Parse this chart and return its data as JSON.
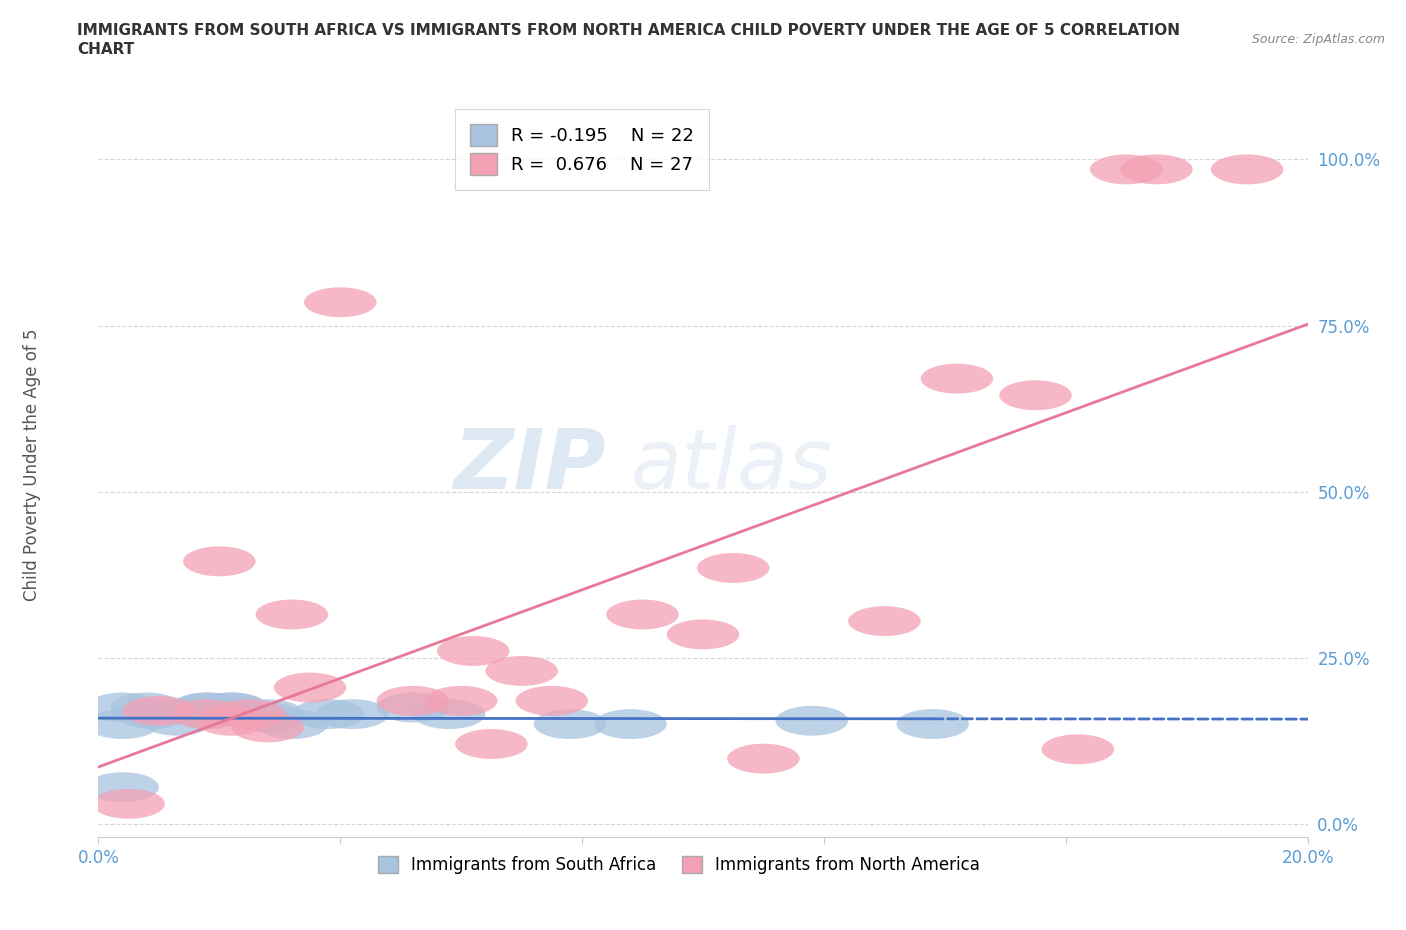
{
  "title_line1": "IMMIGRANTS FROM SOUTH AFRICA VS IMMIGRANTS FROM NORTH AMERICA CHILD POVERTY UNDER THE AGE OF 5 CORRELATION",
  "title_line2": "CHART",
  "source_text": "Source: ZipAtlas.com",
  "ylabel": "Child Poverty Under the Age of 5",
  "xlim": [
    0.0,
    0.2
  ],
  "ylim": [
    -0.02,
    1.1
  ],
  "yticks": [
    0.0,
    0.25,
    0.5,
    0.75,
    1.0
  ],
  "ytick_labels": [
    "0.0%",
    "25.0%",
    "50.0%",
    "75.0%",
    "100.0%"
  ],
  "xtick_positions": [
    0.0,
    0.04,
    0.08,
    0.12,
    0.16,
    0.2
  ],
  "xtick_labels": [
    "0.0%",
    "",
    "",
    "",
    "",
    "20.0%"
  ],
  "r_south_africa": -0.195,
  "n_south_africa": 22,
  "r_north_america": 0.676,
  "n_north_america": 27,
  "color_south_africa": "#a8c4e0",
  "color_north_america": "#f4a0b4",
  "line_color_south_africa": "#4472c4",
  "line_color_north_america": "#e8789a",
  "watermark_zip": "ZIP",
  "watermark_atlas": "atlas",
  "south_africa_x": [
    0.008,
    0.018,
    0.004,
    0.022,
    0.013,
    0.028,
    0.018,
    0.022,
    0.032,
    0.038,
    0.009,
    0.018,
    0.028,
    0.042,
    0.058,
    0.078,
    0.118,
    0.004,
    0.052,
    0.088,
    0.138,
    0.004
  ],
  "south_africa_y": [
    0.175,
    0.175,
    0.175,
    0.175,
    0.155,
    0.16,
    0.175,
    0.175,
    0.15,
    0.165,
    0.165,
    0.165,
    0.165,
    0.165,
    0.165,
    0.15,
    0.155,
    0.055,
    0.175,
    0.15,
    0.15,
    0.15
  ],
  "north_america_x": [
    0.005,
    0.01,
    0.018,
    0.022,
    0.02,
    0.025,
    0.028,
    0.032,
    0.035,
    0.04,
    0.052,
    0.06,
    0.062,
    0.065,
    0.07,
    0.075,
    0.09,
    0.1,
    0.105,
    0.11,
    0.13,
    0.142,
    0.155,
    0.162,
    0.17,
    0.175,
    0.19
  ],
  "north_america_y": [
    0.03,
    0.17,
    0.165,
    0.155,
    0.395,
    0.165,
    0.145,
    0.315,
    0.205,
    0.785,
    0.185,
    0.185,
    0.26,
    0.12,
    0.23,
    0.185,
    0.315,
    0.285,
    0.385,
    0.098,
    0.305,
    0.67,
    0.645,
    0.112,
    0.985,
    0.985,
    0.985
  ],
  "background_color": "#ffffff",
  "grid_color": "#cccccc"
}
